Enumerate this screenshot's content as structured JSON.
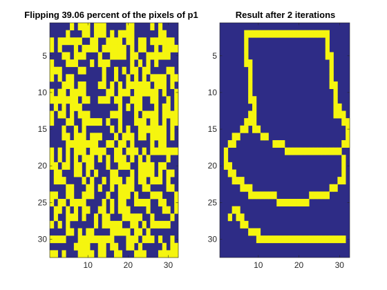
{
  "figure": {
    "background": "#ffffff"
  },
  "chart_data": [
    {
      "type": "heatmap",
      "title": "Flipping 39.06 percent of the pixels of p1",
      "xlabel": "",
      "ylabel": "",
      "rows": 32,
      "cols": 32,
      "xlim": [
        0.5,
        32.5
      ],
      "ylim": [
        0.5,
        32.5
      ],
      "y_direction": "reverse",
      "x_ticks": [
        10,
        20,
        30
      ],
      "y_ticks": [
        5,
        10,
        15,
        20,
        25,
        30
      ],
      "colors": {
        "0": "#2e2c86",
        "1": "#f5f50f"
      },
      "grid": false,
      "matrix": [
        "00000101110111000001100001010000",
        "00001000110111010111100000011000",
        "10111111001100111101101101111110",
        "10100010111101111110101100101111",
        "00011011100010011110110011111100",
        "10001110001011100000101010100000",
        "11100001100001001010110110000110",
        "10101100000001001001010101111011",
        "00011101100011010101111110111010",
        "10110111100000110111011111101001",
        "11111110110011101100111001100101",
        "01010111000000000101011000101101",
        "10110101110000011100010111101111",
        "10001100111110100100011101101011",
        "00010010100000010101001111111010",
        "00011011101110001011101101111010",
        "00001111111100110110100001011000",
        "10101011101111001101110101111111",
        "10101010111010101110101010000100",
        "11011011011000100111001111011000",
        "01100011010100011000101111010110",
        "01110000101001011101101101110100",
        "00001100011010010111100110000110",
        "11001100111000100111010001110001",
        "10110111100001010110011110011001",
        "01101010110011010111000010001101",
        "01001110100101100011111001000010",
        "10101000000101111100110101111100",
        "00001101011000011111011010000000",
        "11110001111111110001110111010010",
        "00000011110011011001101000001011",
        "11010001111011001100011100011111"
      ]
    },
    {
      "type": "heatmap",
      "title": "Result after 2 iterations",
      "xlabel": "",
      "ylabel": "",
      "rows": 32,
      "cols": 32,
      "xlim": [
        0.5,
        32.5
      ],
      "ylim": [
        0.5,
        32.5
      ],
      "y_direction": "reverse",
      "x_ticks": [
        10,
        20,
        30
      ],
      "y_ticks": [
        5,
        10,
        15,
        20,
        25,
        30
      ],
      "colors": {
        "0": "#2e2c86",
        "1": "#f5f50f"
      },
      "grid": false,
      "matrix": [
        "00000000000000000000000000000000",
        "00000011111111111111111111100000",
        "00000010000000000000000000100000",
        "00000010000000000000000000100000",
        "00000010000000000000000000110000",
        "00000011000000000000000000010000",
        "00000001000000000000000000010000",
        "00000001000000000000000000010000",
        "00000001000000000000000000011000",
        "00000001000000000000000000001000",
        "00000001100000000000000000001000",
        "00000000100000000000000000001100",
        "00000001100000000000000000001110",
        "00000011100000000000000000000011",
        "00000110110000000000000000000001",
        "00011000001100000000000000000001",
        "00110000000001110000000000000011",
        "01000000000000001111111111111100",
        "01000000000000000000000000000010",
        "01100000000000000000000000000010",
        "00110000000000000000000000000010",
        "00011100000000000000000000000110",
        "00000111000000000000000000011000",
        "00000001111111000000001111100000",
        "00000000000000111111110000000000",
        "00011000000000000000000000000000",
        "00101100000000000000000000000000",
        "00000110000000000000000000000000",
        "00000001110000000000000000000000",
        "00000000011111111111111111111110",
        "00000000000000000000000000000000",
        "00000000000000000000000000000000"
      ]
    }
  ]
}
